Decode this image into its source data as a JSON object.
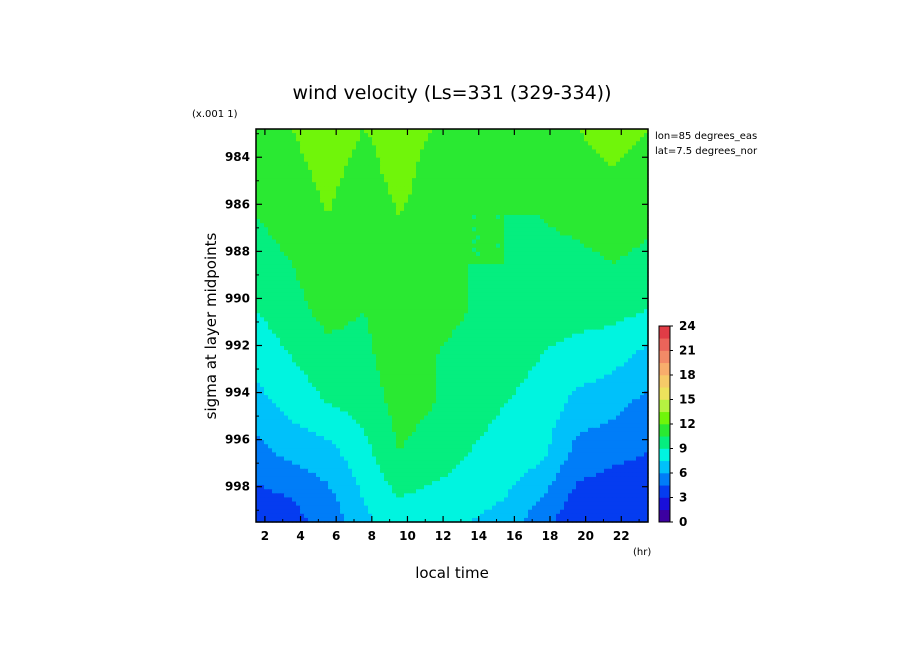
{
  "chart_data": {
    "type": "heatmap",
    "title": "wind velocity (Ls=331 (329-334))",
    "xlabel": "local time",
    "x_unit": "(hr)",
    "ylabel": "sigma at layer midpoints",
    "y_multiplier": "(x.001 1)",
    "annotations": [
      "lon=85 degrees_eas",
      "lat=7.5 degrees_nor"
    ],
    "x_ticks": [
      2,
      4,
      6,
      8,
      10,
      12,
      14,
      16,
      18,
      20,
      22
    ],
    "y_ticks": [
      984,
      986,
      988,
      990,
      992,
      994,
      996,
      998
    ],
    "xlim": [
      1.5,
      23.5
    ],
    "ylim": [
      999.5,
      982.8
    ],
    "colorbar": {
      "ticks": [
        0,
        3,
        6,
        9,
        12,
        15,
        18,
        21,
        24
      ],
      "range": [
        0,
        24
      ],
      "step": 1.5
    },
    "x": [
      1.5,
      3.5,
      5.5,
      7.5,
      9.5,
      11.5,
      13.5,
      15.5,
      17.5,
      19.5,
      21.5,
      23.5
    ],
    "y": [
      982.8,
      984.5,
      986.5,
      988.5,
      990.5,
      992.5,
      994.5,
      996.5,
      998.5,
      999.5
    ],
    "z": [
      [
        11.5,
        12.0,
        13.0,
        12.0,
        12.5,
        12.0,
        11.5,
        11.5,
        11.5,
        12.0,
        12.5,
        12.0
      ],
      [
        11.0,
        11.5,
        12.5,
        11.5,
        12.5,
        11.5,
        11.0,
        11.0,
        11.0,
        11.5,
        12.0,
        11.5
      ],
      [
        10.5,
        11.0,
        12.0,
        11.0,
        12.0,
        11.5,
        10.5,
        10.5,
        10.5,
        11.0,
        11.5,
        11.0
      ],
      [
        10.0,
        10.5,
        11.5,
        10.5,
        12.0,
        11.0,
        10.5,
        10.5,
        10.0,
        10.0,
        10.5,
        10.0
      ],
      [
        9.0,
        10.0,
        11.0,
        10.5,
        11.5,
        11.0,
        10.5,
        10.0,
        9.5,
        9.5,
        9.5,
        9.0
      ],
      [
        8.0,
        9.0,
        10.0,
        10.0,
        11.5,
        10.5,
        10.0,
        9.5,
        9.0,
        8.5,
        8.0,
        7.0
      ],
      [
        7.0,
        8.0,
        9.0,
        9.5,
        11.0,
        10.5,
        9.5,
        9.0,
        8.5,
        7.0,
        6.5,
        5.5
      ],
      [
        5.5,
        6.5,
        7.0,
        8.5,
        10.5,
        10.0,
        9.0,
        8.5,
        8.0,
        5.5,
        5.0,
        4.5
      ],
      [
        4.0,
        4.5,
        5.5,
        7.5,
        9.0,
        8.5,
        8.0,
        7.5,
        6.0,
        4.0,
        3.5,
        3.5
      ],
      [
        3.5,
        4.0,
        5.0,
        7.0,
        8.5,
        8.0,
        7.5,
        7.0,
        5.0,
        3.5,
        3.0,
        3.0
      ]
    ]
  }
}
